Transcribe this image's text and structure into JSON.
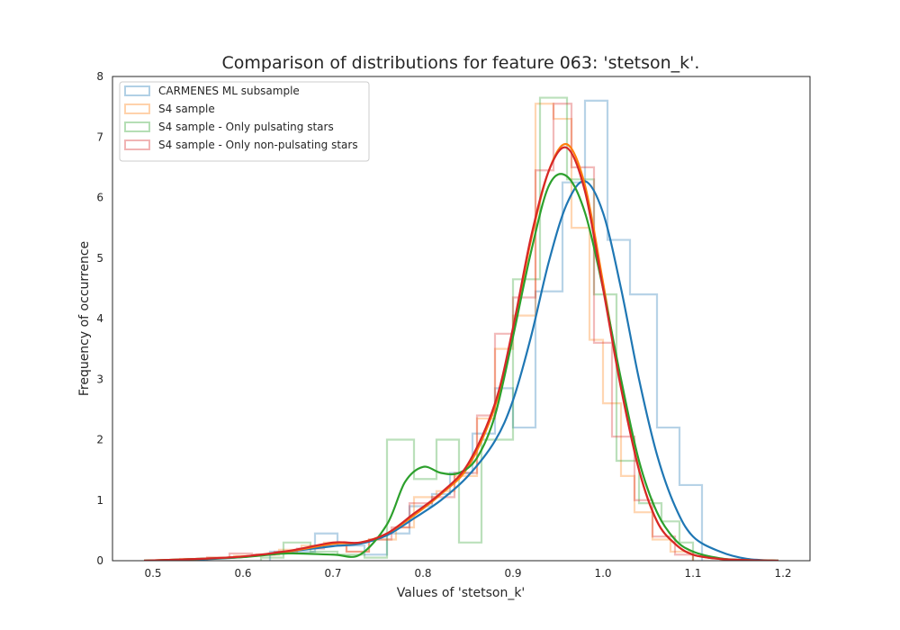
{
  "chart_data": {
    "type": "histogram",
    "title": "Comparison of distributions for feature 063: 'stetson_k'.",
    "xlabel": "Values of 'stetson_k'",
    "ylabel": "Frequency of occurrence",
    "xlim": [
      0.455,
      1.23
    ],
    "ylim": [
      0,
      8
    ],
    "xticks": [
      0.5,
      0.6,
      0.7,
      0.8,
      0.9,
      1.0,
      1.1,
      1.2
    ],
    "xtick_labels": [
      "0.5",
      "0.6",
      "0.7",
      "0.8",
      "0.9",
      "1.0",
      "1.1",
      "1.2"
    ],
    "yticks": [
      0,
      1,
      2,
      3,
      4,
      5,
      6,
      7,
      8
    ],
    "ytick_labels": [
      "0",
      "1",
      "2",
      "3",
      "4",
      "5",
      "6",
      "7",
      "8"
    ],
    "grid": false,
    "legend_position": "top-left",
    "series": [
      {
        "name": "CARMENES ML subsample",
        "color": "#1f77b4",
        "hist_edges": [
          0.63,
          0.655,
          0.68,
          0.705,
          0.735,
          0.76,
          0.785,
          0.81,
          0.83,
          0.855,
          0.88,
          0.9,
          0.925,
          0.955,
          0.98,
          1.005,
          1.03,
          1.06,
          1.085,
          1.11
        ],
        "hist_values": [
          0.15,
          0.15,
          0.45,
          0.25,
          0.1,
          0.45,
          0.9,
          1.1,
          1.45,
          2.1,
          2.85,
          2.2,
          4.45,
          6.25,
          7.6,
          5.3,
          4.4,
          2.2,
          1.25,
          0.0
        ],
        "kde_x": [
          0.49,
          0.55,
          0.6,
          0.65,
          0.7,
          0.73,
          0.76,
          0.79,
          0.82,
          0.85,
          0.88,
          0.9,
          0.92,
          0.94,
          0.96,
          0.98,
          1.0,
          1.02,
          1.04,
          1.06,
          1.08,
          1.1,
          1.13,
          1.16,
          1.195
        ],
        "kde_y": [
          0.0,
          0.02,
          0.06,
          0.15,
          0.24,
          0.28,
          0.42,
          0.7,
          1.0,
          1.4,
          1.98,
          2.65,
          3.7,
          4.95,
          5.9,
          6.27,
          5.75,
          4.5,
          3.0,
          1.75,
          0.9,
          0.4,
          0.15,
          0.03,
          0.0
        ]
      },
      {
        "name": "S4 sample",
        "color": "#ff7f0e",
        "hist_edges": [
          0.53,
          0.56,
          0.59,
          0.615,
          0.64,
          0.665,
          0.69,
          0.715,
          0.74,
          0.77,
          0.79,
          0.815,
          0.835,
          0.86,
          0.88,
          0.9,
          0.925,
          0.945,
          0.965,
          0.985,
          1.0,
          1.02,
          1.035,
          1.055,
          1.075,
          1.1
        ],
        "hist_values": [
          0.03,
          0.05,
          0.08,
          0.1,
          0.18,
          0.25,
          0.3,
          0.15,
          0.35,
          0.55,
          1.05,
          1.15,
          1.4,
          2.35,
          3.5,
          4.05,
          7.55,
          7.3,
          5.5,
          3.65,
          2.6,
          1.4,
          0.8,
          0.35,
          0.15
        ]
      },
      {
        "name": "S4 sample - Only pulsating stars",
        "color": "#2ca02c",
        "hist_edges": [
          0.62,
          0.645,
          0.675,
          0.705,
          0.735,
          0.76,
          0.79,
          0.815,
          0.84,
          0.865,
          0.9,
          0.93,
          0.96,
          0.99,
          1.015,
          1.04,
          1.065,
          1.085,
          1.1
        ],
        "hist_values": [
          0.05,
          0.3,
          0.15,
          0.1,
          0.05,
          2.0,
          1.35,
          2.0,
          0.3,
          2.0,
          4.65,
          7.65,
          6.3,
          4.4,
          1.65,
          0.95,
          0.65,
          0.3
        ]
      },
      {
        "name": "S4 sample - Only non-pulsating stars",
        "color": "#d62728",
        "hist_edges": [
          0.56,
          0.585,
          0.61,
          0.635,
          0.66,
          0.69,
          0.715,
          0.74,
          0.765,
          0.785,
          0.81,
          0.835,
          0.86,
          0.88,
          0.9,
          0.925,
          0.945,
          0.965,
          0.99,
          1.01,
          1.035,
          1.055,
          1.08,
          1.1
        ],
        "hist_values": [
          0.05,
          0.12,
          0.1,
          0.15,
          0.2,
          0.25,
          0.15,
          0.35,
          0.55,
          0.95,
          1.05,
          1.45,
          2.4,
          3.75,
          4.35,
          6.45,
          7.55,
          6.5,
          3.6,
          2.05,
          1.0,
          0.4,
          0.1
        ]
      }
    ],
    "kde_extra": [
      {
        "series": "S4 sample",
        "color": "#ff7f0e",
        "kde_x": [
          0.49,
          0.55,
          0.6,
          0.65,
          0.7,
          0.73,
          0.76,
          0.79,
          0.82,
          0.85,
          0.88,
          0.9,
          0.92,
          0.94,
          0.96,
          0.98,
          1.0,
          1.02,
          1.04,
          1.06,
          1.08,
          1.1,
          1.13,
          1.16,
          1.195
        ],
        "kde_y": [
          0.0,
          0.03,
          0.07,
          0.15,
          0.28,
          0.3,
          0.45,
          0.75,
          1.1,
          1.55,
          2.55,
          3.8,
          5.3,
          6.45,
          6.88,
          6.2,
          4.6,
          2.9,
          1.5,
          0.65,
          0.28,
          0.1,
          0.03,
          0.01,
          0.0
        ]
      },
      {
        "series": "S4 sample - Only pulsating stars",
        "color": "#2ca02c",
        "kde_x": [
          0.49,
          0.55,
          0.6,
          0.65,
          0.7,
          0.73,
          0.76,
          0.78,
          0.8,
          0.82,
          0.84,
          0.86,
          0.88,
          0.9,
          0.92,
          0.94,
          0.96,
          0.98,
          1.0,
          1.02,
          1.04,
          1.06,
          1.08,
          1.1,
          1.13,
          1.16,
          1.195
        ],
        "kde_y": [
          0.0,
          0.03,
          0.06,
          0.12,
          0.1,
          0.1,
          0.6,
          1.3,
          1.55,
          1.45,
          1.45,
          1.7,
          2.4,
          3.7,
          5.1,
          6.2,
          6.35,
          5.75,
          4.5,
          3.0,
          1.65,
          0.8,
          0.35,
          0.15,
          0.04,
          0.01,
          0.0
        ]
      },
      {
        "series": "S4 sample - Only non-pulsating stars",
        "color": "#d62728",
        "kde_x": [
          0.49,
          0.55,
          0.6,
          0.65,
          0.7,
          0.73,
          0.76,
          0.79,
          0.82,
          0.85,
          0.88,
          0.9,
          0.92,
          0.94,
          0.96,
          0.98,
          1.0,
          1.02,
          1.04,
          1.06,
          1.08,
          1.1,
          1.13,
          1.16,
          1.195
        ],
        "kde_y": [
          0.0,
          0.03,
          0.07,
          0.16,
          0.3,
          0.3,
          0.45,
          0.78,
          1.12,
          1.6,
          2.6,
          3.85,
          5.35,
          6.45,
          6.82,
          6.1,
          4.5,
          2.85,
          1.5,
          0.65,
          0.28,
          0.1,
          0.03,
          0.01,
          0.0
        ]
      }
    ]
  }
}
